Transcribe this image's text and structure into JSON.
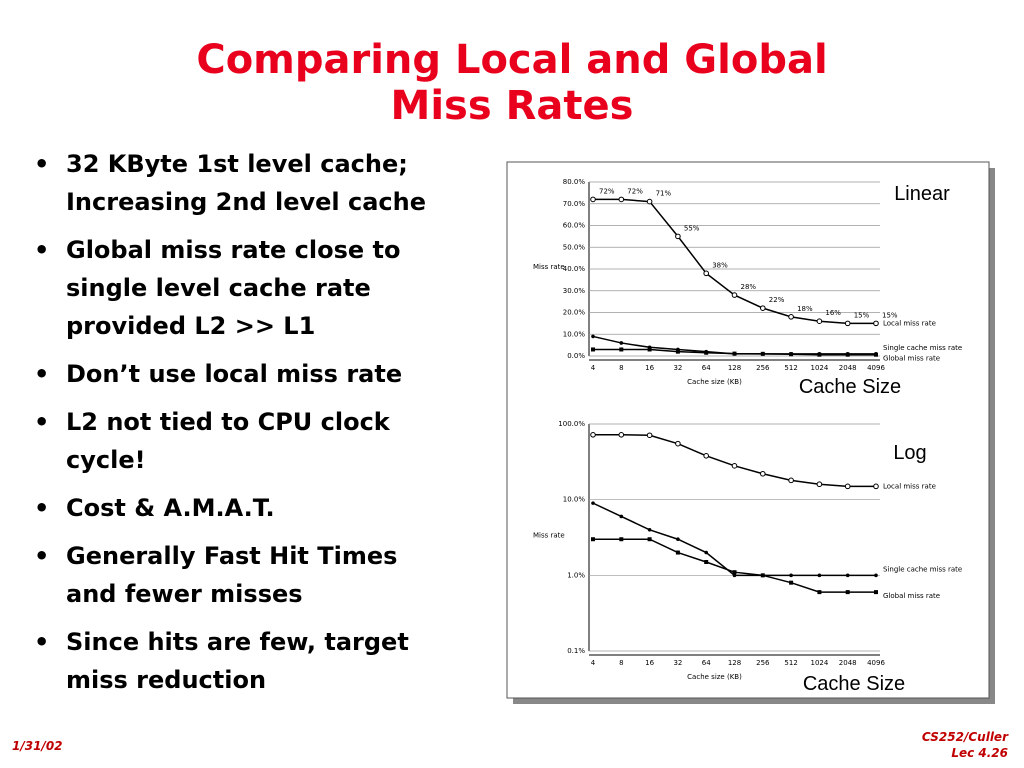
{
  "title": [
    "Comparing Local and Global",
    "Miss Rates"
  ],
  "bullets": [
    [
      "32 KByte 1st level cache;",
      "Increasing 2nd level cache"
    ],
    [
      "Global miss rate close to",
      "single level cache rate",
      "provided L2 >> L1"
    ],
    [
      "Don’t use local miss rate"
    ],
    [
      "L2 not tied to CPU clock",
      "cycle!"
    ],
    [
      "Cost & A.M.A.T."
    ],
    [
      "Generally Fast Hit Times",
      "and fewer misses"
    ],
    [
      "Since hits are few, target",
      "miss reduction"
    ]
  ],
  "annotations": {
    "linear": "Linear",
    "linear_axis": "Cache Size",
    "log": "Log",
    "log_axis": "Cache Size"
  },
  "footer": {
    "date": "1/31/02",
    "course": "CS252/Culler",
    "lecture": "Lec 4.26"
  },
  "chart_data": [
    {
      "type": "line",
      "y_label": "Miss rate",
      "x_label": "Cache size (KB)",
      "categories": [
        "4",
        "8",
        "16",
        "32",
        "64",
        "128",
        "256",
        "512",
        "1024",
        "2048",
        "4096"
      ],
      "ylim": [
        0,
        80
      ],
      "yticks": [
        {
          "value": 0,
          "label": "0.0%"
        },
        {
          "value": 10,
          "label": "10.0%"
        },
        {
          "value": 20,
          "label": "20.0%"
        },
        {
          "value": 30,
          "label": "30.0%"
        },
        {
          "value": 40,
          "label": "40.0%"
        },
        {
          "value": 50,
          "label": "50.0%"
        },
        {
          "value": 60,
          "label": "60.0%"
        },
        {
          "value": 70,
          "label": "70.0%"
        },
        {
          "value": 80,
          "label": "80.0%"
        }
      ],
      "grid": true,
      "log_scale": false,
      "series": [
        {
          "name": "Local miss rate",
          "color": "#000000",
          "values": [
            72,
            72,
            71,
            55,
            38,
            28,
            22,
            18,
            16,
            15,
            15
          ],
          "value_labels": [
            "72%",
            "72%",
            "71%",
            "55%",
            "38%",
            "28%",
            "22%",
            "18%",
            "16%",
            "15%",
            "15%"
          ]
        },
        {
          "name": "Single cache miss rate",
          "color": "#000000",
          "values": [
            9,
            6,
            4,
            3,
            2,
            1,
            1,
            1,
            1,
            1,
            1
          ]
        },
        {
          "name": "Global miss rate",
          "color": "#000000",
          "values": [
            3,
            3,
            3,
            2,
            1.5,
            1.1,
            1,
            0.8,
            0.6,
            0.6,
            0.6
          ]
        }
      ]
    },
    {
      "type": "line",
      "y_label": "Miss rate",
      "x_label": "Cache size (KB)",
      "categories": [
        "4",
        "8",
        "16",
        "32",
        "64",
        "128",
        "256",
        "512",
        "1024",
        "2048",
        "4096"
      ],
      "ylim": [
        0.1,
        100
      ],
      "yticks": [
        {
          "value": 0.1,
          "label": "0.1%"
        },
        {
          "value": 1,
          "label": "1.0%"
        },
        {
          "value": 10,
          "label": "10.0%"
        },
        {
          "value": 100,
          "label": "100.0%"
        }
      ],
      "grid": true,
      "log_scale": true,
      "series": [
        {
          "name": "Local miss rate",
          "color": "#000000",
          "values": [
            72,
            72,
            71,
            55,
            38,
            28,
            22,
            18,
            16,
            15,
            15
          ]
        },
        {
          "name": "Single cache miss rate",
          "color": "#000000",
          "values": [
            9,
            6,
            4,
            3,
            2,
            1,
            1,
            1,
            1,
            1,
            1
          ]
        },
        {
          "name": "Global miss rate",
          "color": "#000000",
          "values": [
            3,
            3,
            3,
            2,
            1.5,
            1.1,
            1,
            0.8,
            0.6,
            0.6,
            0.6
          ]
        }
      ]
    }
  ]
}
